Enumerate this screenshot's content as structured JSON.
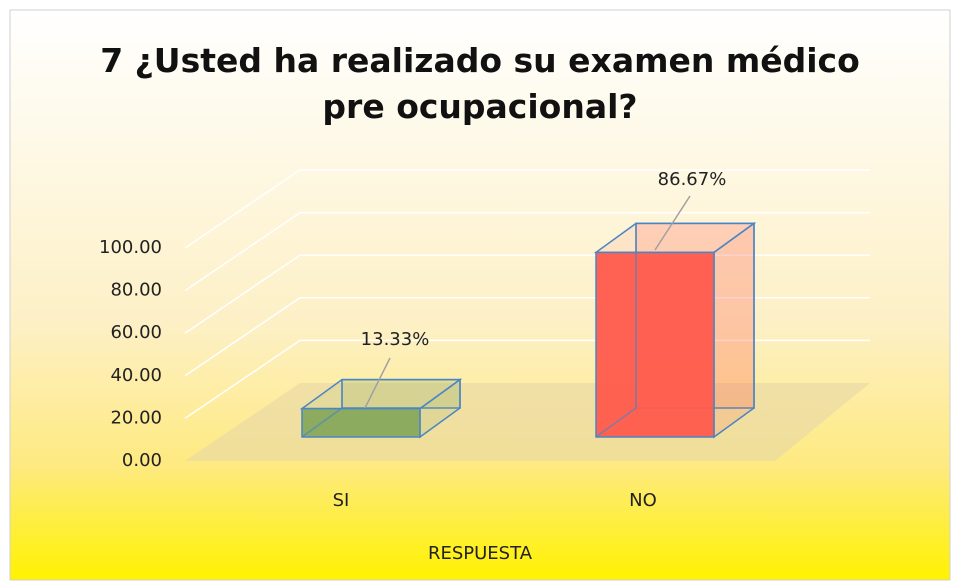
{
  "chart_data": {
    "type": "bar3d",
    "title": "7 ¿Usted ha realizado su examen médico pre ocupacional?",
    "x_label": "RESPUESTA",
    "categories": [
      "SI",
      "NO"
    ],
    "values": [
      13.33,
      86.67
    ],
    "value_labels": [
      "13.33%",
      "86.67%"
    ],
    "colors": [
      "#86a85c",
      "#ff5a4c"
    ],
    "ylim": [
      0,
      100
    ],
    "yticks": [
      {
        "value": 0,
        "label": "0.00"
      },
      {
        "value": 20,
        "label": "20.00"
      },
      {
        "value": 40,
        "label": "40.00"
      },
      {
        "value": 60,
        "label": "60.00"
      },
      {
        "value": 80,
        "label": "80.00"
      },
      {
        "value": 100,
        "label": "100.00"
      }
    ],
    "grid": true
  }
}
